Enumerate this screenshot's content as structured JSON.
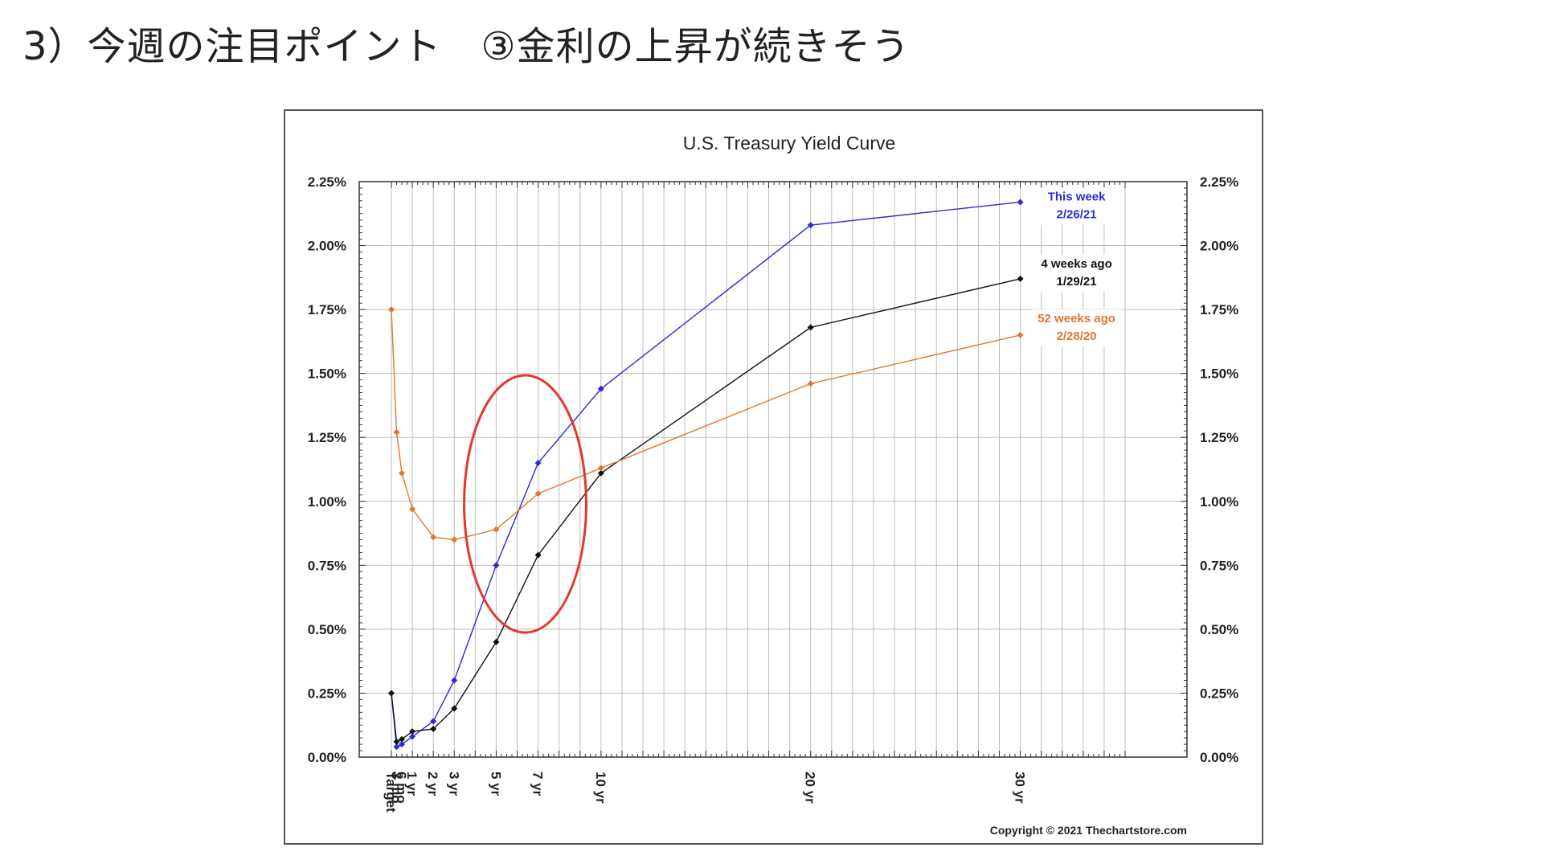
{
  "slide": {
    "title": "3）今週の注目ポイント　③金利の上昇が続きそう"
  },
  "colors": {
    "this_week": "#2b2bd6",
    "four_weeks": "#111111",
    "fifty_two_weeks": "#e2762e",
    "highlight": "#e23a2a",
    "grid": "#bdbdbd"
  },
  "chart_data": {
    "type": "line",
    "title": "U.S. Treasury Yield Curve",
    "xlabel": "",
    "ylabel": "",
    "ylim": [
      0,
      2.25
    ],
    "y_ticks": [
      "0.00%",
      "0.25%",
      "0.50%",
      "0.75%",
      "1.00%",
      "1.25%",
      "1.50%",
      "1.75%",
      "2.00%",
      "2.25%"
    ],
    "categories": [
      "Target",
      "3 mo",
      "6 mo",
      "1 yr",
      "2 yr",
      "3 yr",
      "5 yr",
      "7 yr",
      "10 yr",
      "20 yr",
      "30 yr"
    ],
    "x_months": [
      0,
      3,
      6,
      12,
      24,
      36,
      60,
      84,
      120,
      240,
      360
    ],
    "grid": true,
    "series": [
      {
        "name": "This week",
        "date": "2/26/21",
        "values": [
          0.25,
          0.04,
          0.05,
          0.08,
          0.14,
          0.3,
          0.75,
          1.15,
          1.44,
          2.08,
          2.17
        ]
      },
      {
        "name": "4 weeks ago",
        "date": "1/29/21",
        "values": [
          0.25,
          0.06,
          0.07,
          0.1,
          0.11,
          0.19,
          0.45,
          0.79,
          1.11,
          1.68,
          1.87
        ]
      },
      {
        "name": "52 weeks ago",
        "date": "2/28/20",
        "values": [
          1.75,
          1.27,
          1.11,
          0.97,
          0.86,
          0.85,
          0.89,
          1.03,
          1.13,
          1.46,
          1.65
        ]
      }
    ],
    "copyright": "Copyright © 2021 Thechartstore.com"
  }
}
